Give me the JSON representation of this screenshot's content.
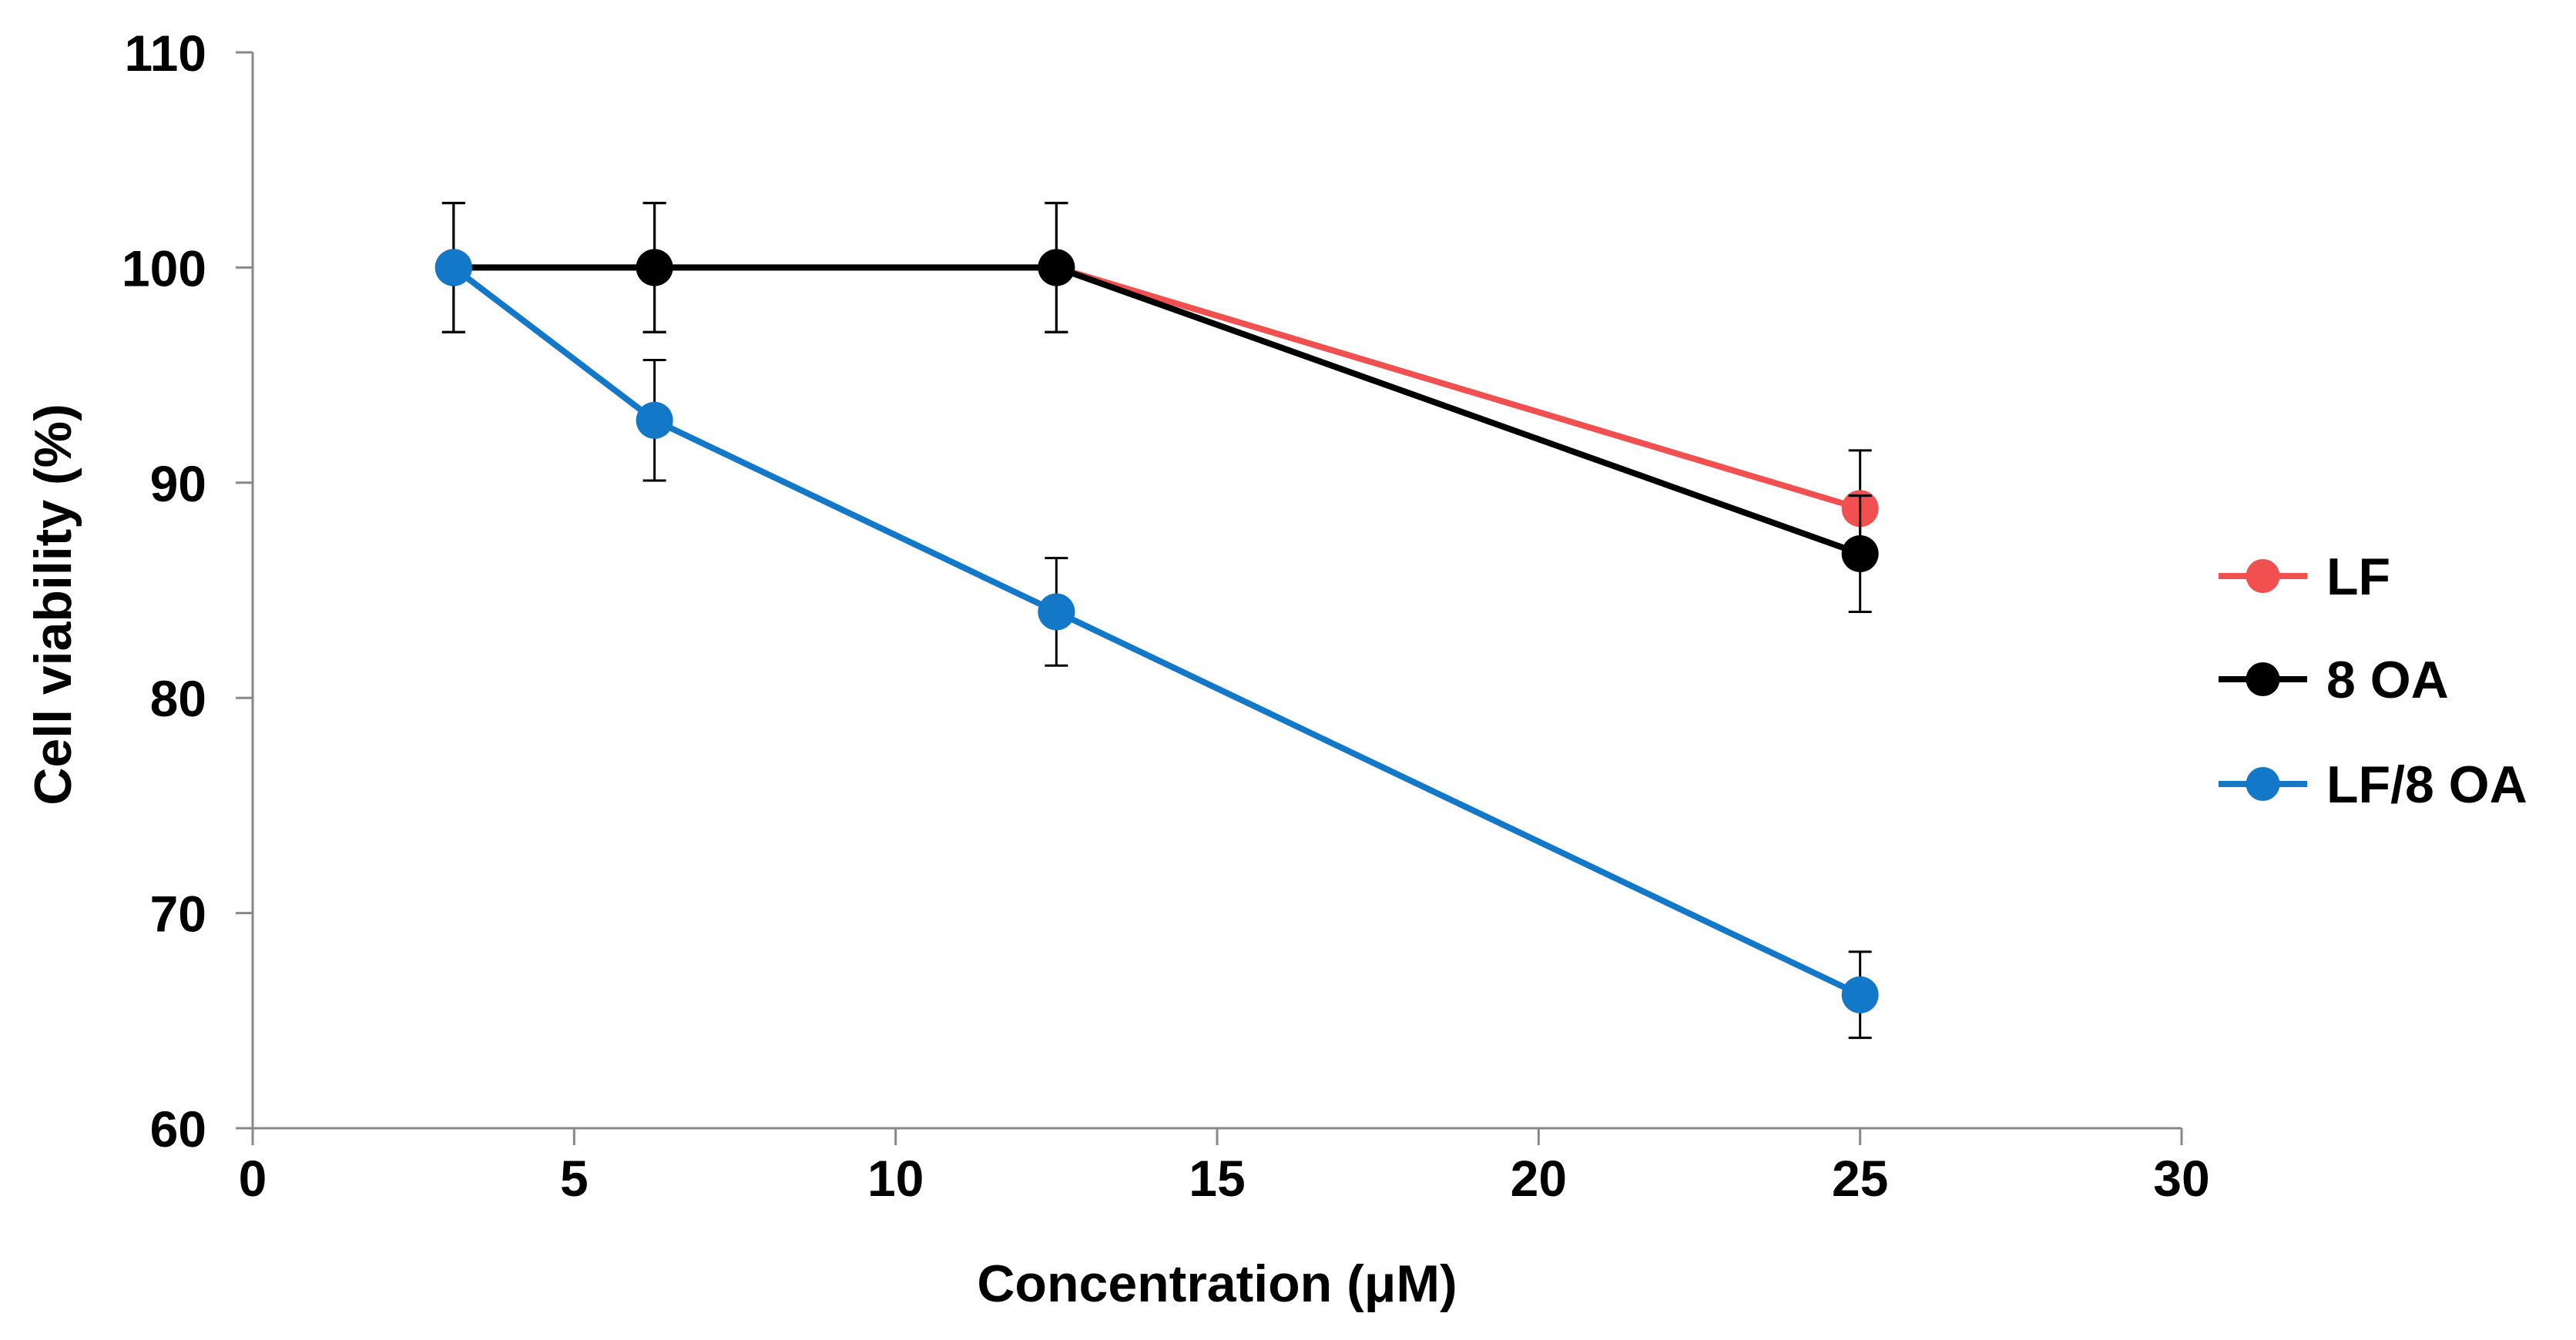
{
  "chart_data": {
    "type": "line",
    "title": "",
    "xlabel": "Concentration (μM)",
    "ylabel": "Cell viability (%)",
    "xlim": [
      0,
      30
    ],
    "ylim": [
      60,
      110
    ],
    "xticks": [
      0,
      5,
      10,
      15,
      20,
      25,
      30
    ],
    "yticks": [
      60,
      70,
      80,
      90,
      100,
      110
    ],
    "x": [
      3.125,
      6.25,
      12.5,
      25
    ],
    "grid": false,
    "legend_position": "right",
    "series": [
      {
        "name": "LF",
        "color": "#f05050",
        "values": [
          100,
          100,
          100,
          88.8
        ],
        "errors": [
          3,
          3,
          3,
          2.7
        ]
      },
      {
        "name": "8 OA",
        "color": "#000000",
        "values": [
          100,
          100,
          100,
          86.7
        ],
        "errors": [
          3,
          3,
          3,
          2.7
        ]
      },
      {
        "name": "LF/8 OA",
        "color": "#1478c8",
        "values": [
          100,
          92.9,
          84,
          66.2
        ],
        "errors": [
          0,
          2.8,
          2.5,
          2
        ]
      }
    ]
  }
}
